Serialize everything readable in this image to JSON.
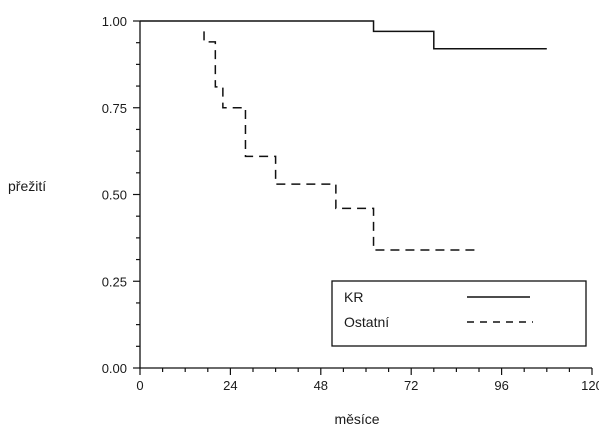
{
  "chart_data": {
    "type": "line",
    "chart_subtype": "kaplan-meier step survival curves",
    "xlabel": "měsíce",
    "ylabel": "přežití",
    "xlim": [
      0,
      120
    ],
    "ylim": [
      0,
      1
    ],
    "x_ticks": [
      0,
      24,
      48,
      72,
      96,
      120
    ],
    "x_tick_labels": [
      "0",
      "24",
      "48",
      "72",
      "96",
      "120"
    ],
    "x_minor_step": 6,
    "y_ticks": [
      0,
      0.25,
      0.5,
      0.75,
      1
    ],
    "y_tick_labels": [
      "0.00",
      "0.25",
      "0.50",
      "0.75",
      "1.00"
    ],
    "y_minor_step": 0.0625,
    "grid": false,
    "legend_position": "bottom-right",
    "series": [
      {
        "name": "KR",
        "line_style": "solid",
        "color": "#111111",
        "steps": [
          [
            0,
            1.0
          ],
          [
            62,
            0.97
          ],
          [
            78,
            0.92
          ],
          [
            108,
            0.92
          ]
        ]
      },
      {
        "name": "Ostatní",
        "line_style": "dashed",
        "color": "#111111",
        "steps": [
          [
            17,
            0.97
          ],
          [
            17,
            0.94
          ],
          [
            20,
            0.81
          ],
          [
            22,
            0.75
          ],
          [
            28,
            0.61
          ],
          [
            36,
            0.53
          ],
          [
            52,
            0.46
          ],
          [
            62,
            0.34
          ],
          [
            90,
            0.34
          ]
        ]
      }
    ]
  }
}
